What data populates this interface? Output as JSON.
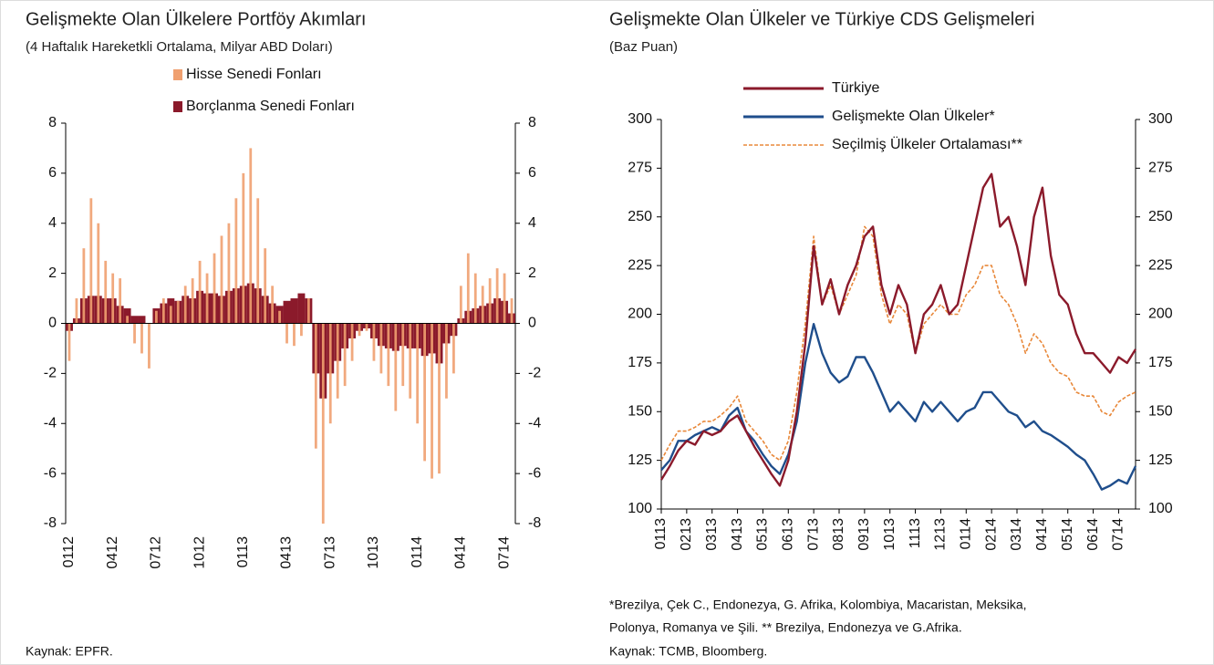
{
  "chart_data": [
    {
      "type": "bar",
      "title": "Gelişmekte Olan Ülkelere Portföy Akımları",
      "subtitle": "(4 Haftalık Hareketkli Ortalama, Milyar ABD Doları)",
      "source": "Kaynak: EPFR.",
      "categories": [
        "0112",
        null,
        null,
        null,
        null,
        null,
        "0412",
        null,
        null,
        null,
        null,
        null,
        "0712",
        null,
        null,
        null,
        null,
        null,
        "1012",
        null,
        null,
        null,
        null,
        null,
        "0113",
        null,
        null,
        null,
        null,
        null,
        "0413",
        null,
        null,
        null,
        null,
        null,
        "0713",
        null,
        null,
        null,
        null,
        null,
        "1013",
        null,
        null,
        null,
        null,
        null,
        "0114",
        null,
        null,
        null,
        null,
        null,
        "0414",
        null,
        null,
        null,
        null,
        null,
        "0714",
        null
      ],
      "series": [
        {
          "name": "Hisse Senedi Fonları",
          "color": "#f0a070",
          "values": [
            -1.5,
            1.0,
            3,
            5,
            4,
            2.5,
            2,
            1.8,
            0.3,
            -0.8,
            -1.2,
            -1.8,
            0.5,
            1,
            0.7,
            0.9,
            1.5,
            1.8,
            2.5,
            2,
            2.8,
            3.5,
            4,
            5,
            6,
            7,
            5,
            3,
            1.5,
            0.5,
            -0.8,
            -0.9,
            -0.5,
            1.0,
            -5,
            -8,
            -4,
            -3,
            -2.5,
            -1.5,
            -0.5,
            -0.3,
            -1.5,
            -2,
            -2.5,
            -3.5,
            -2.5,
            -3,
            -4,
            -5.5,
            -6.2,
            -6,
            -3,
            -2,
            1.5,
            2.8,
            2.0,
            1.5,
            1.8,
            2.2,
            2.0,
            1.0
          ]
        },
        {
          "name": "Borçlanma Senedi Fonları",
          "color": "#8b1a2b",
          "values": [
            -0.3,
            0.2,
            1.0,
            1.1,
            1.1,
            1.0,
            1.0,
            0.7,
            0.6,
            0.3,
            0.3,
            0.0,
            0.6,
            0.8,
            1.0,
            0.9,
            1.1,
            1.0,
            1.3,
            1.2,
            1.2,
            1.1,
            1.3,
            1.4,
            1.5,
            1.6,
            1.4,
            1.1,
            0.8,
            0.7,
            0.9,
            1.0,
            1.2,
            1.0,
            -2,
            -3,
            -2.0,
            -1.5,
            -1.0,
            -0.6,
            -0.3,
            -0.2,
            -0.6,
            -0.9,
            -1.0,
            -1.1,
            -0.9,
            -1.0,
            -1.0,
            -1.3,
            -1.2,
            -1.6,
            -0.8,
            -0.5,
            0.2,
            0.5,
            0.6,
            0.7,
            0.8,
            1.0,
            0.9,
            0.4
          ]
        }
      ],
      "ylim": [
        -8,
        8
      ],
      "yticks": [
        -8,
        -6,
        -4,
        -2,
        0,
        2,
        4,
        6,
        8
      ],
      "y2lim": [
        -8,
        8
      ],
      "y2ticks": [
        -8,
        -6,
        -4,
        -2,
        0,
        2,
        4,
        6,
        8
      ]
    },
    {
      "type": "line",
      "title": "Gelişmekte Olan Ülkeler ve Türkiye CDS Gelişmeleri",
      "subtitle": "(Baz Puan)",
      "notes": [
        "*Brezilya, Çek C., Endonezya, G. Afrika, Kolombiya, Macaristan, Meksika,",
        "Polonya, Romanya ve Şili. ** Brezilya, Endonezya ve G.Afrika."
      ],
      "source": "Kaynak: TCMB, Bloomberg.",
      "categories": [
        "0113",
        null,
        null,
        "0213",
        null,
        null,
        "0313",
        null,
        null,
        "0413",
        null,
        null,
        "0513",
        null,
        null,
        "0613",
        null,
        null,
        "0713",
        null,
        null,
        "0813",
        null,
        null,
        "0913",
        null,
        null,
        "1013",
        null,
        null,
        "1113",
        null,
        null,
        "1213",
        null,
        null,
        "0114",
        null,
        null,
        "0214",
        null,
        null,
        "0314",
        null,
        null,
        "0414",
        null,
        null,
        "0514",
        null,
        null,
        "0614",
        null,
        null,
        "0714",
        null,
        null
      ],
      "series": [
        {
          "name": "Türkiye",
          "color": "#8b1a2b",
          "values": [
            115,
            122,
            130,
            135,
            133,
            140,
            138,
            140,
            145,
            148,
            140,
            132,
            125,
            118,
            112,
            125,
            150,
            185,
            235,
            205,
            218,
            200,
            215,
            225,
            240,
            245,
            215,
            200,
            215,
            205,
            180,
            200,
            205,
            215,
            200,
            205,
            225,
            245,
            265,
            272,
            245,
            250,
            235,
            215,
            250,
            265,
            230,
            210,
            205,
            190,
            180,
            180,
            175,
            170,
            178,
            175,
            182
          ]
        },
        {
          "name": "Gelişmekte Olan Ülkeler*",
          "color": "#1f4e8c",
          "values": [
            120,
            125,
            135,
            135,
            138,
            140,
            142,
            140,
            148,
            152,
            140,
            135,
            128,
            122,
            118,
            128,
            145,
            175,
            195,
            180,
            170,
            165,
            168,
            178,
            178,
            170,
            160,
            150,
            155,
            150,
            145,
            155,
            150,
            155,
            150,
            145,
            150,
            152,
            160,
            160,
            155,
            150,
            148,
            142,
            145,
            140,
            138,
            135,
            132,
            128,
            125,
            118,
            110,
            112,
            115,
            113,
            122
          ]
        },
        {
          "name": "Seçilmiş Ülkeler Ortalaması**",
          "color": "#e8883a",
          "dashed": true,
          "values": [
            125,
            133,
            140,
            140,
            142,
            145,
            145,
            148,
            152,
            158,
            145,
            140,
            135,
            128,
            125,
            135,
            160,
            195,
            240,
            205,
            215,
            200,
            210,
            220,
            245,
            240,
            210,
            195,
            205,
            200,
            180,
            195,
            200,
            205,
            200,
            200,
            210,
            215,
            225,
            225,
            210,
            205,
            195,
            180,
            190,
            185,
            175,
            170,
            168,
            160,
            158,
            158,
            150,
            148,
            155,
            158,
            160
          ]
        }
      ],
      "ylim": [
        100,
        300
      ],
      "yticks": [
        100,
        125,
        150,
        175,
        200,
        225,
        250,
        275,
        300
      ],
      "y2lim": [
        100,
        300
      ],
      "y2ticks": [
        100,
        125,
        150,
        175,
        200,
        225,
        250,
        275,
        300
      ]
    }
  ]
}
